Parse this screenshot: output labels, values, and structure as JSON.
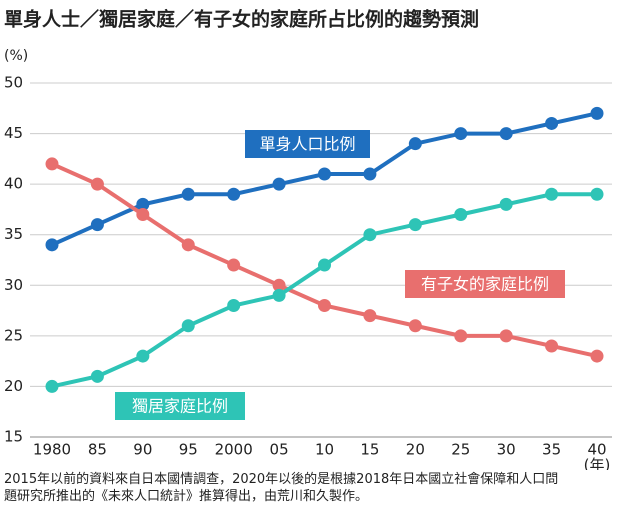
{
  "chart_data": {
    "type": "line",
    "title": "單身人士／獨居家庭／有子女的家庭所占比例的趨勢預測",
    "y_unit": "(%)",
    "x_unit": "(年)",
    "categories": [
      "1980",
      "85",
      "90",
      "95",
      "2000",
      "05",
      "10",
      "15",
      "20",
      "25",
      "30",
      "35",
      "40"
    ],
    "series": [
      {
        "name": "單身人口比例",
        "color": "#1f6fbf",
        "values": [
          34,
          36,
          38,
          39,
          39,
          40,
          41,
          41,
          44,
          45,
          45,
          46,
          47
        ]
      },
      {
        "name": "有子女的家庭比例",
        "color": "#e86f6e",
        "values": [
          42,
          40,
          37,
          34,
          32,
          30,
          28,
          27,
          26,
          25,
          25,
          24,
          23
        ]
      },
      {
        "name": "獨居家庭比例",
        "color": "#2ec4b6",
        "values": [
          20,
          21,
          23,
          26,
          28,
          29,
          32,
          35,
          36,
          37,
          38,
          39,
          39
        ]
      }
    ],
    "ylim": [
      15,
      50
    ],
    "yticks": [
      15,
      20,
      25,
      30,
      35,
      40,
      45,
      50
    ],
    "grid": true,
    "note": "2015年以前的資料來自日本國情調查，2020年以後的是根據2018年日本國立社會保障和人口問題研究所推出的《未來人口統計》推算得出，由荒川和久製作。"
  }
}
